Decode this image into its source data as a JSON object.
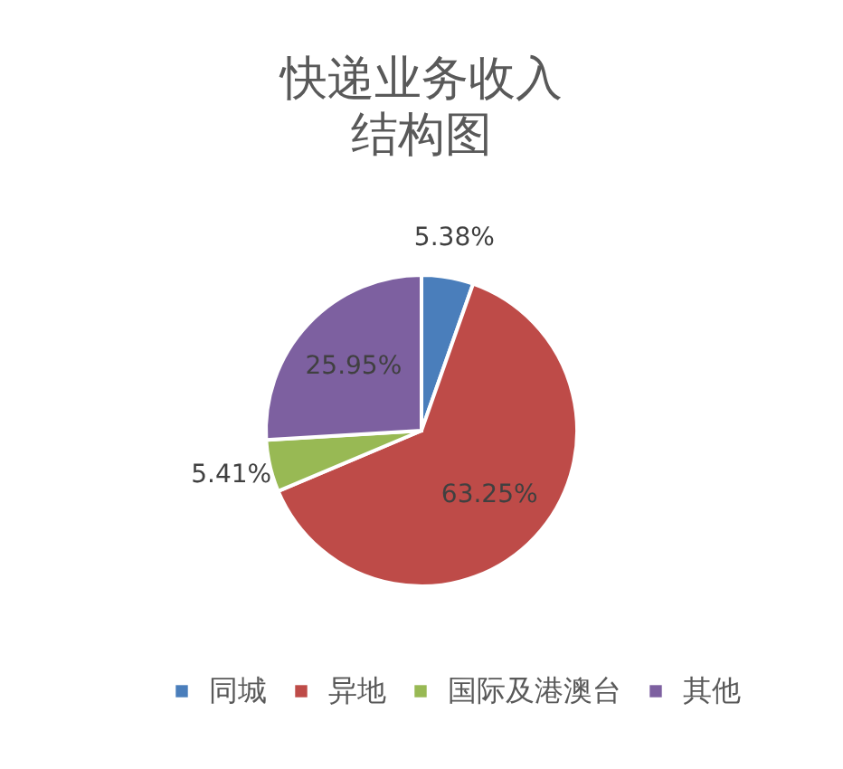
{
  "chart_data": {
    "type": "pie",
    "title": "快递业务收入结构图",
    "categories": [
      "同城",
      "异地",
      "国际及港澳台",
      "其他"
    ],
    "values": [
      5.38,
      63.25,
      5.41,
      25.95
    ],
    "colors": [
      "#4a7ebb",
      "#be4b48",
      "#98b954",
      "#7d60a0"
    ],
    "value_labels": [
      "5.38%",
      "63.25%",
      "5.41%",
      "25.95%"
    ],
    "legend": "bottom"
  }
}
